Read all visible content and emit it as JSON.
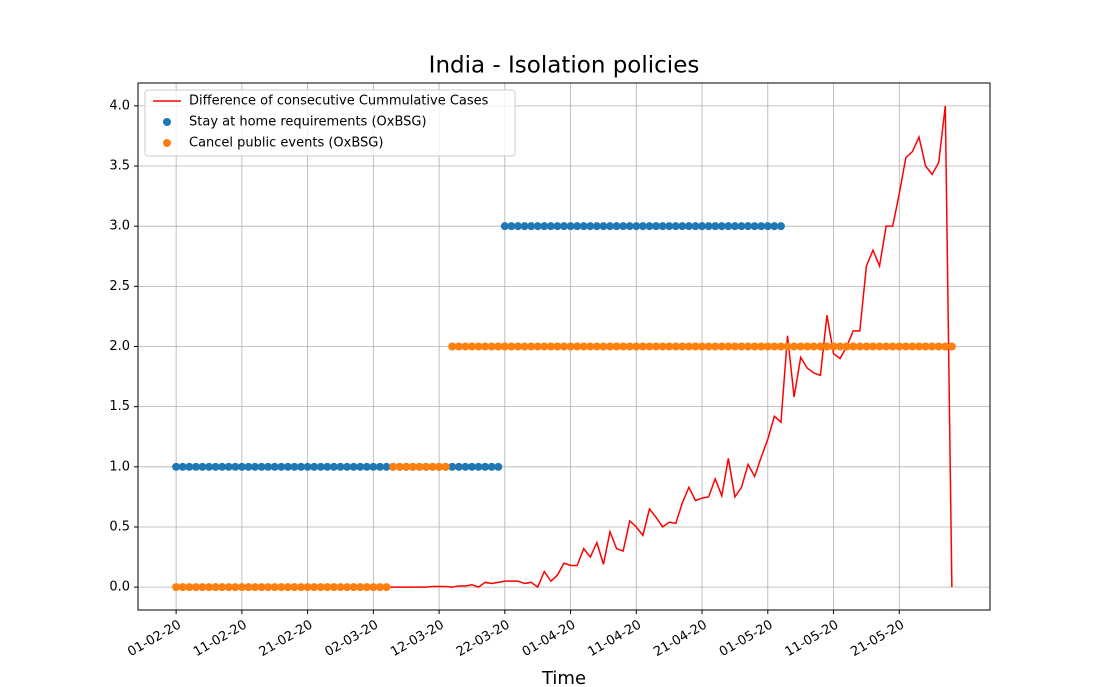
{
  "chart_data": {
    "type": "line",
    "title": "India - Isolation policies",
    "xlabel": "Time",
    "x": [
      "01-02-20",
      "02-02-20",
      "03-02-20",
      "04-02-20",
      "05-02-20",
      "06-02-20",
      "07-02-20",
      "08-02-20",
      "09-02-20",
      "10-02-20",
      "11-02-20",
      "12-02-20",
      "13-02-20",
      "14-02-20",
      "15-02-20",
      "16-02-20",
      "17-02-20",
      "18-02-20",
      "19-02-20",
      "20-02-20",
      "21-02-20",
      "22-02-20",
      "23-02-20",
      "24-02-20",
      "25-02-20",
      "26-02-20",
      "27-02-20",
      "28-02-20",
      "29-02-20",
      "01-03-20",
      "02-03-20",
      "03-03-20",
      "04-03-20",
      "05-03-20",
      "06-03-20",
      "07-03-20",
      "08-03-20",
      "09-03-20",
      "10-03-20",
      "11-03-20",
      "12-03-20",
      "13-03-20",
      "14-03-20",
      "15-03-20",
      "16-03-20",
      "17-03-20",
      "18-03-20",
      "19-03-20",
      "20-03-20",
      "21-03-20",
      "22-03-20",
      "23-03-20",
      "24-03-20",
      "25-03-20",
      "26-03-20",
      "27-03-20",
      "28-03-20",
      "29-03-20",
      "30-03-20",
      "31-03-20",
      "01-04-20",
      "02-04-20",
      "03-04-20",
      "04-04-20",
      "05-04-20",
      "06-04-20",
      "07-04-20",
      "08-04-20",
      "09-04-20",
      "10-04-20",
      "11-04-20",
      "12-04-20",
      "13-04-20",
      "14-04-20",
      "15-04-20",
      "16-04-20",
      "17-04-20",
      "18-04-20",
      "19-04-20",
      "20-04-20",
      "21-04-20",
      "22-04-20",
      "23-04-20",
      "24-04-20",
      "25-04-20",
      "26-04-20",
      "27-04-20",
      "28-04-20",
      "29-04-20",
      "30-04-20",
      "01-05-20",
      "02-05-20",
      "03-05-20",
      "04-05-20",
      "05-05-20",
      "06-05-20",
      "07-05-20",
      "08-05-20",
      "09-05-20",
      "10-05-20",
      "11-05-20",
      "12-05-20",
      "13-05-20",
      "14-05-20",
      "15-05-20",
      "16-05-20",
      "17-05-20",
      "18-05-20",
      "19-05-20",
      "20-05-20",
      "21-05-20",
      "22-05-20",
      "23-05-20",
      "24-05-20",
      "25-05-20",
      "26-05-20",
      "27-05-20",
      "28-05-20",
      "29-05-20"
    ],
    "xticks": [
      "01-02-20",
      "11-02-20",
      "21-02-20",
      "02-03-20",
      "12-03-20",
      "22-03-20",
      "01-04-20",
      "11-04-20",
      "21-04-20",
      "01-05-20",
      "11-05-20",
      "21-05-20"
    ],
    "ylim": [
      -0.19,
      4.19
    ],
    "yticks": [
      {
        "value": 0,
        "label": "0.0"
      },
      0.5,
      {
        "value": 1,
        "label": "1.0"
      },
      1.5,
      {
        "value": 2,
        "label": "2.0"
      },
      2.5,
      {
        "value": 3,
        "label": "3.0"
      },
      3.5,
      {
        "value": 4,
        "label": "4.0"
      }
    ],
    "grid": true,
    "legend": "upper left",
    "series": [
      {
        "name": "Difference of consecutive Cummulative Cases",
        "color": "#ff0000",
        "style": "line",
        "values": [
          0,
          0,
          0,
          0,
          0,
          0,
          0,
          0,
          0,
          0,
          0,
          0,
          0,
          0,
          0,
          0,
          0,
          0,
          0,
          0,
          0,
          0,
          0,
          0,
          0,
          0,
          0,
          0,
          0,
          0,
          0,
          0,
          0,
          0,
          0,
          0,
          0,
          0,
          0,
          0.005,
          0.005,
          0.005,
          0,
          0.01,
          0.01,
          0.02,
          0,
          0.04,
          0.03,
          0.04,
          0.05,
          0.05,
          0.05,
          0.03,
          0.04,
          0,
          0.13,
          0.05,
          0.1,
          0.2,
          0.18,
          0.18,
          0.32,
          0.25,
          0.37,
          0.19,
          0.46,
          0.32,
          0.3,
          0.55,
          0.5,
          0.43,
          0.65,
          0.58,
          0.5,
          0.54,
          0.53,
          0.7,
          0.83,
          0.72,
          0.74,
          0.75,
          0.9,
          0.76,
          1.07,
          0.75,
          0.83,
          1.02,
          0.92,
          1.08,
          1.23,
          1.42,
          1.37,
          2.09,
          1.58,
          1.91,
          1.82,
          1.78,
          1.76,
          2.26,
          1.94,
          1.9,
          2.0,
          2.13,
          2.13,
          2.67,
          2.8,
          2.67,
          3.0,
          3.0,
          3.27,
          3.57,
          3.62,
          3.74,
          3.5,
          3.43,
          3.53,
          4.0,
          0
        ]
      },
      {
        "name": "Stay at home requirements (OxBSG)",
        "color": "#1f77b4",
        "style": "marker",
        "values": [
          1,
          1,
          1,
          1,
          1,
          1,
          1,
          1,
          1,
          1,
          1,
          1,
          1,
          1,
          1,
          1,
          1,
          1,
          1,
          1,
          1,
          1,
          1,
          1,
          1,
          1,
          1,
          1,
          1,
          1,
          1,
          1,
          1,
          1,
          1,
          1,
          1,
          1,
          1,
          1,
          1,
          1,
          1,
          1,
          1,
          1,
          1,
          1,
          1,
          1,
          3,
          3,
          3,
          3,
          3,
          3,
          3,
          3,
          3,
          3,
          3,
          3,
          3,
          3,
          3,
          3,
          3,
          3,
          3,
          3,
          3,
          3,
          3,
          3,
          3,
          3,
          3,
          3,
          3,
          3,
          3,
          3,
          3,
          3,
          3,
          3,
          3,
          3,
          3,
          3,
          3,
          3,
          3,
          null,
          null,
          null,
          null,
          null,
          null,
          null,
          null,
          null,
          null,
          null,
          null,
          null,
          null,
          null,
          null,
          null,
          null,
          null,
          null,
          null,
          null,
          null,
          null,
          null,
          null
        ]
      },
      {
        "name": "Cancel public events (OxBSG)",
        "color": "#ff7f0e",
        "style": "marker",
        "values": [
          0,
          0,
          0,
          0,
          0,
          0,
          0,
          0,
          0,
          0,
          0,
          0,
          0,
          0,
          0,
          0,
          0,
          0,
          0,
          0,
          0,
          0,
          0,
          0,
          0,
          0,
          0,
          0,
          0,
          0,
          0,
          0,
          0,
          1,
          1,
          1,
          1,
          1,
          1,
          1,
          1,
          1,
          2,
          2,
          2,
          2,
          2,
          2,
          2,
          2,
          2,
          2,
          2,
          2,
          2,
          2,
          2,
          2,
          2,
          2,
          2,
          2,
          2,
          2,
          2,
          2,
          2,
          2,
          2,
          2,
          2,
          2,
          2,
          2,
          2,
          2,
          2,
          2,
          2,
          2,
          2,
          2,
          2,
          2,
          2,
          2,
          2,
          2,
          2,
          2,
          2,
          2,
          2,
          2,
          2,
          2,
          2,
          2,
          2,
          2,
          2,
          2,
          2,
          2,
          2,
          2,
          2,
          2,
          2,
          2,
          2,
          2,
          2,
          2,
          2,
          2,
          2,
          2,
          2
        ]
      }
    ]
  }
}
